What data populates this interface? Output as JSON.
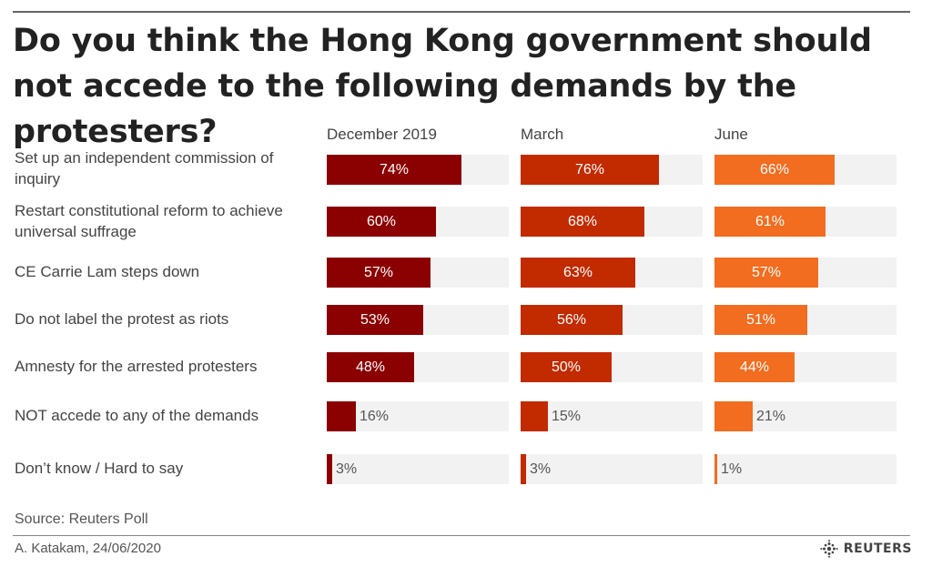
{
  "title": "Do you think the Hong Kong government should not accede to the following demands by the protesters?",
  "source": "Source: Reuters Poll",
  "credit": "A. Katakam,  24/06/2020",
  "logo_text": "REUTERS",
  "logo_icon": "reuters-dot-logo-icon",
  "colors": {
    "track": "#f2f2f2",
    "series": [
      "#8b0000",
      "#c22a00",
      "#f26d1f"
    ]
  },
  "chart_data": {
    "type": "bar",
    "orientation": "horizontal",
    "unit": "%",
    "xlim": [
      0,
      100
    ],
    "categories": [
      "Set up an independent commission of inquiry",
      "Restart constitutional reform to achieve universal suffrage",
      "CE Carrie Lam steps down",
      "Do not label the protest as riots",
      "Amnesty for the arrested protesters",
      "NOT accede to any of the demands",
      "Don’t know / Hard to say"
    ],
    "series": [
      {
        "name": "December 2019",
        "values": [
          74,
          60,
          57,
          53,
          48,
          16,
          3
        ]
      },
      {
        "name": "March",
        "values": [
          76,
          68,
          63,
          56,
          50,
          15,
          3
        ]
      },
      {
        "name": "June",
        "values": [
          66,
          61,
          57,
          51,
          44,
          21,
          1
        ]
      }
    ]
  }
}
